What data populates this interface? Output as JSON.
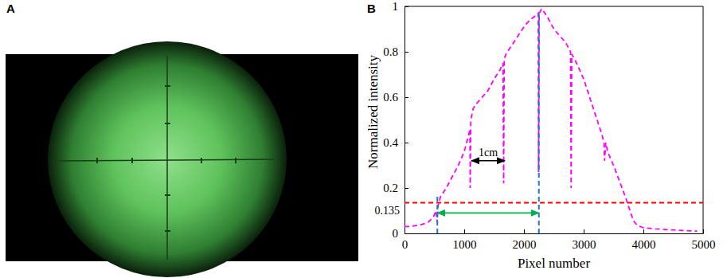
{
  "panel_labels": [
    "A",
    "B"
  ],
  "chart_data": {
    "type": "line",
    "x_label": "Pixel number",
    "y_label": "Normalized intensity",
    "x": [
      0,
      100,
      200,
      300,
      400,
      480,
      530,
      545,
      560,
      600,
      650,
      700,
      800,
      900,
      1000,
      1080,
      1095,
      1100,
      1110,
      1150,
      1200,
      1300,
      1400,
      1500,
      1600,
      1650,
      1660,
      1670,
      1700,
      1800,
      1900,
      2000,
      2100,
      2200,
      2240,
      2245,
      2255,
      2300,
      2350,
      2400,
      2500,
      2600,
      2700,
      2780,
      2790,
      2800,
      2900,
      3000,
      3100,
      3200,
      3300,
      3340,
      3350,
      3370,
      3400,
      3500,
      3600,
      3700,
      3800,
      3850,
      3900,
      4000,
      4200,
      4500,
      4700,
      4900
    ],
    "series": [
      {
        "color": "#ff00ff",
        "line_style": "dashed",
        "values": [
          0.03,
          0.03,
          0.035,
          0.04,
          0.05,
          0.07,
          0.1,
          0.05,
          0.12,
          0.16,
          0.18,
          0.2,
          0.25,
          0.3,
          0.36,
          0.44,
          0.46,
          0.2,
          0.5,
          0.55,
          0.57,
          0.6,
          0.63,
          0.68,
          0.72,
          0.75,
          0.22,
          0.77,
          0.79,
          0.83,
          0.87,
          0.91,
          0.94,
          0.96,
          0.97,
          0.27,
          0.97,
          0.99,
          0.97,
          0.95,
          0.9,
          0.87,
          0.84,
          0.8,
          0.2,
          0.79,
          0.74,
          0.68,
          0.6,
          0.52,
          0.44,
          0.4,
          0.32,
          0.4,
          0.36,
          0.3,
          0.23,
          0.16,
          0.08,
          0.05,
          0.035,
          0.025,
          0.02,
          0.015,
          0.012,
          0.01
        ]
      }
    ],
    "xlim": [
      0,
      5000
    ],
    "ylim": [
      0,
      1
    ],
    "xticks": [
      0,
      1000,
      2000,
      3000,
      4000,
      5000
    ],
    "yticks": [
      0,
      0.2,
      0.4,
      0.6,
      0.8,
      1
    ],
    "reference_lines": [
      {
        "axis": "y",
        "value": 0.135,
        "label": "0.135",
        "color": "#ff0000",
        "line_style": "dashed"
      },
      {
        "axis": "x",
        "value": 550,
        "y_range": [
          0,
          0.17
        ],
        "color": "#1f77c8",
        "line_style": "dashed"
      },
      {
        "axis": "x",
        "value": 2250,
        "y_range": [
          0,
          0.97
        ],
        "color": "#1f77c8",
        "line_style": "dashed"
      }
    ],
    "annotations": [
      {
        "text": "1cm",
        "x": [
          1120,
          1680
        ],
        "y": 0.32,
        "color": "#000000"
      },
      {
        "x": [
          550,
          2250
        ],
        "y": 0.09,
        "color": "#00b050"
      }
    ]
  }
}
